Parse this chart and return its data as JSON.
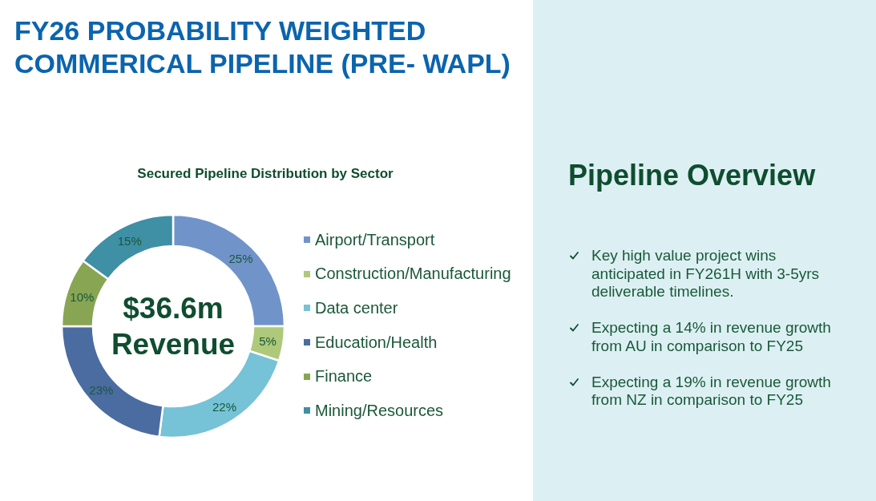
{
  "chart_data": [
    {
      "type": "donut",
      "title": "FY26 PROBABILITY WEIGHTED COMMERICAL PIPELINE (PRE- WAPL)",
      "subtitle": "Secured Pipeline Distribution by Sector",
      "categories": [
        "Airport/Transport",
        "Construction/Manufacturing",
        "Data center",
        "Education/Health",
        "Finance",
        "Mining/Resources"
      ],
      "values": [
        25,
        5,
        22,
        23,
        10,
        15
      ],
      "colors": [
        "#7094c9",
        "#aec97a",
        "#76c2d7",
        "#4a6ca0",
        "#88a554",
        "#3f8fa5"
      ],
      "value_labels": [
        "25%",
        "5%",
        "22%",
        "23%",
        "10%",
        "15%"
      ],
      "legend": "right",
      "annotations": [
        "$36.6m Revenue"
      ]
    },
    {
      "type": "other",
      "title": "Pipeline Overview",
      "annotations": [
        "Key high value project wins anticipated in FY261H with 3-5yrs deliverable timelines.",
        "Expecting a 14% in revenue growth from AU in comparison to FY25",
        "Expecting a 19% in revenue growth from NZ in comparison to FY25"
      ]
    }
  ]
}
